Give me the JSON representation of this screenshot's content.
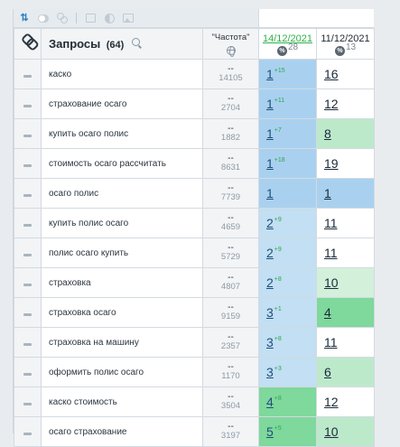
{
  "header": {
    "query_title": "Запросы",
    "query_count": "(64)",
    "freq_label": "\"Частота\"",
    "dates": [
      {
        "label": "14/12/2021",
        "count": "28"
      },
      {
        "label": "11/12/2021",
        "count": "13"
      }
    ]
  },
  "icons": [
    "sort-icon",
    "toggle-icon",
    "link-icon",
    "square-icon",
    "contrast-icon",
    "image-icon",
    "search-icon",
    "globe-icon",
    "percent-icon",
    "dash-icon"
  ],
  "colors": {
    "top3_blue": "#a9d1ef",
    "top5_blue": "#c2dff3",
    "improved_green": "#7fd89c",
    "improved_light_green": "#bde9cb",
    "improved_pale_green": "#d2f0da",
    "delta_green": "#2fa64a",
    "date_green": "#2db24a"
  },
  "rows": [
    {
      "query": "каско",
      "freq_top": "--",
      "freq_bot": "14105",
      "pos1": "1",
      "delta1": "+15",
      "bg1": "bg-blue",
      "pos2": "16",
      "bg2": "bg-white"
    },
    {
      "query": "страхование осаго",
      "freq_top": "--",
      "freq_bot": "2704",
      "pos1": "1",
      "delta1": "+11",
      "bg1": "bg-blue",
      "pos2": "12",
      "bg2": "bg-white"
    },
    {
      "query": "купить осаго полис",
      "freq_top": "--",
      "freq_bot": "1882",
      "pos1": "1",
      "delta1": "+7",
      "bg1": "bg-blue",
      "pos2": "8",
      "bg2": "bg-lgreen"
    },
    {
      "query": "стоимость осаго рассчитать",
      "freq_top": "--",
      "freq_bot": "8631",
      "pos1": "1",
      "delta1": "+18",
      "bg1": "bg-blue",
      "pos2": "19",
      "bg2": "bg-white"
    },
    {
      "query": "осаго полис",
      "freq_top": "--",
      "freq_bot": "7739",
      "pos1": "1",
      "delta1": "",
      "bg1": "bg-blue",
      "pos2": "1",
      "bg2": "bg-blue"
    },
    {
      "query": "купить полис осаго",
      "freq_top": "--",
      "freq_bot": "4659",
      "pos1": "2",
      "delta1": "+9",
      "bg1": "bg-lblue",
      "pos2": "11",
      "bg2": "bg-white"
    },
    {
      "query": "полис осаго купить",
      "freq_top": "--",
      "freq_bot": "5729",
      "pos1": "2",
      "delta1": "+9",
      "bg1": "bg-lblue",
      "pos2": "11",
      "bg2": "bg-white"
    },
    {
      "query": "страховка",
      "freq_top": "--",
      "freq_bot": "4807",
      "pos1": "2",
      "delta1": "+8",
      "bg1": "bg-lblue",
      "pos2": "10",
      "bg2": "bg-pgreen"
    },
    {
      "query": "страховка осаго",
      "freq_top": "--",
      "freq_bot": "9159",
      "pos1": "3",
      "delta1": "+1",
      "bg1": "bg-lblue",
      "pos2": "4",
      "bg2": "bg-green"
    },
    {
      "query": "страховка на машину",
      "freq_top": "--",
      "freq_bot": "2357",
      "pos1": "3",
      "delta1": "+8",
      "bg1": "bg-lblue",
      "pos2": "11",
      "bg2": "bg-white"
    },
    {
      "query": "оформить полис осаго",
      "freq_top": "--",
      "freq_bot": "1170",
      "pos1": "3",
      "delta1": "+3",
      "bg1": "bg-lblue",
      "pos2": "6",
      "bg2": "bg-lgreen"
    },
    {
      "query": "каско стоимость",
      "freq_top": "--",
      "freq_bot": "3504",
      "pos1": "4",
      "delta1": "+8",
      "bg1": "bg-green",
      "pos2": "12",
      "bg2": "bg-white"
    },
    {
      "query": "осаго страхование",
      "freq_top": "--",
      "freq_bot": "3197",
      "pos1": "5",
      "delta1": "+5",
      "bg1": "bg-green",
      "pos2": "10",
      "bg2": "bg-lgreen"
    }
  ]
}
